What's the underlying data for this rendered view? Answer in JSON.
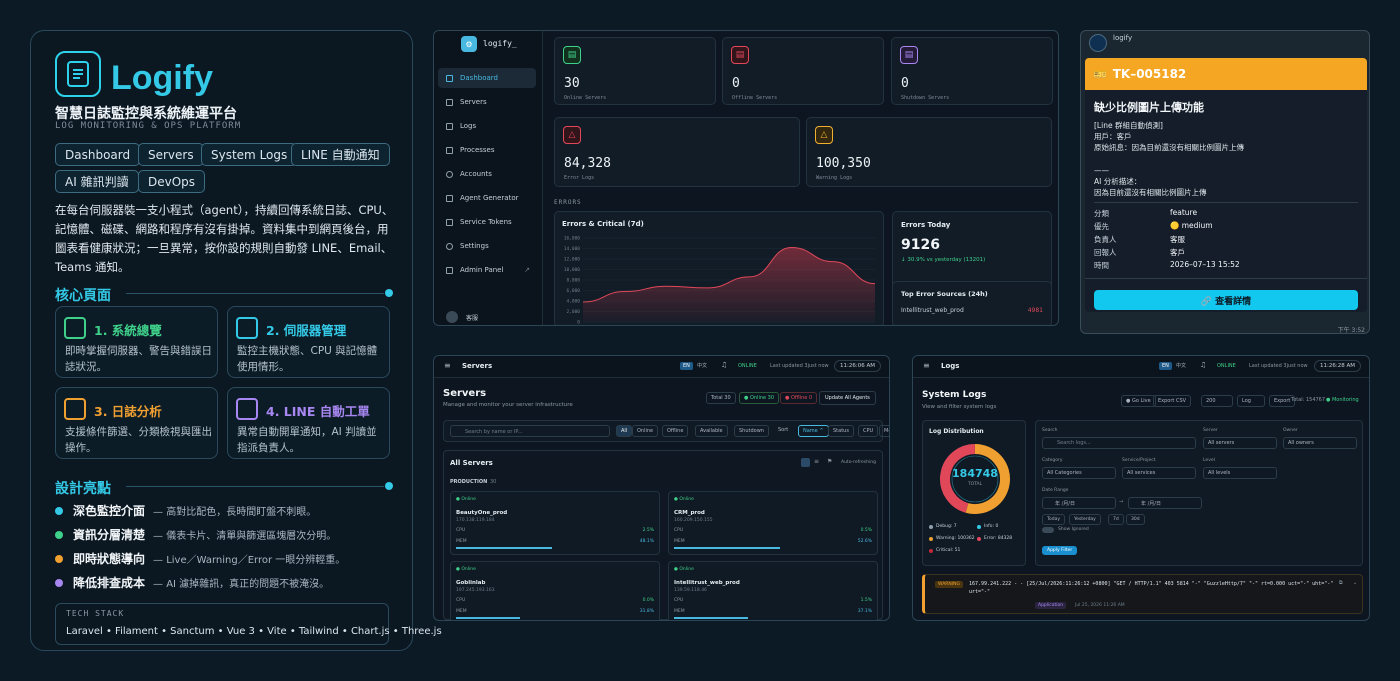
{
  "left": {
    "brand": "Logify",
    "subtitle": "智慧日誌監控與系統維運平台",
    "subtitle_en": "LOG MONITORING & OPS PLATFORM",
    "chips": [
      "Dashboard",
      "Servers",
      "System Logs",
      "LINE 自動通知",
      "AI 雜訊判讀",
      "DevOps"
    ],
    "description": "在每台伺服器裝一支小程式（agent），持續回傳系統日誌、CPU、記憶體、磁碟、網路和程序有沒有掛掉。資料集中到網頁後台，用圖表看健康狀況；一旦異常，按你設的規則自動發 LINE、Email、Teams 通知。",
    "core_title": "核心頁面",
    "cards": [
      {
        "title": "1. 系統總覽",
        "desc": "即時掌握伺服器、警告與錯誤日誌狀況。",
        "color": "#3fd08a"
      },
      {
        "title": "2. 伺服器管理",
        "desc": "監控主機狀態、CPU 與記憶體使用情形。",
        "color": "#34c9e6"
      },
      {
        "title": "3. 日誌分析",
        "desc": "支援條件篩選、分類檢視與匯出操作。",
        "color": "#f0a030"
      },
      {
        "title": "4. LINE 自動工單",
        "desc": "異常自動開單通知，AI 判讀並指派負責人。",
        "color": "#a887f2"
      }
    ],
    "design_title": "設計亮點",
    "highlights": [
      {
        "bold": "深色監控介面",
        "text": "— 高對比配色，長時間盯盤不刺眼。",
        "color": "#34c9e6"
      },
      {
        "bold": "資訊分層清楚",
        "text": "— 儀表卡片、清單與篩選區塊層次分明。",
        "color": "#3fd08a"
      },
      {
        "bold": "即時狀態導向",
        "text": "— Live／Warning／Error 一眼分辨輕重。",
        "color": "#f0a030"
      },
      {
        "bold": "降低排查成本",
        "text": "— AI 濾掉雜訊，真正的問題不被淹沒。",
        "color": "#a887f2"
      }
    ],
    "tech_title": "TECH STACK",
    "tech": "Laravel • Filament • Sanctum • Vue 3 • Vite • Tailwind • Chart.js • Three.js"
  },
  "dash": {
    "app": "logify_",
    "nav": [
      "Dashboard",
      "Servers",
      "Logs",
      "Processes",
      "Accounts",
      "Agent Generator",
      "Service Tokens",
      "Settings",
      "Admin Panel"
    ],
    "stats": [
      {
        "value": "30",
        "label": "Online Servers",
        "color": "#3fd08a",
        "icon": "server-icon"
      },
      {
        "value": "0",
        "label": "Offline Servers",
        "color": "#e0485a",
        "icon": "server-icon"
      },
      {
        "value": "0",
        "label": "Shutdown Servers",
        "color": "#a887f2",
        "icon": "server-icon"
      },
      {
        "value": "84,328",
        "label": "Error Logs",
        "color": "#e0485a",
        "icon": "alert-icon"
      },
      {
        "value": "100,350",
        "label": "Warning Logs",
        "color": "#f0b030",
        "icon": "warning-icon"
      }
    ],
    "errors_label": "ERRORS",
    "chart_title": "Errors & Critical (7d)",
    "yticks": [
      "16,000",
      "14,000",
      "12,000",
      "10,000",
      "8,000",
      "6,000",
      "4,000",
      "2,000",
      "0"
    ],
    "today_title": "Errors Today",
    "today_value": "9126",
    "today_delta": "↓ 30.9% vs yesterday (13201)",
    "sources_title": "Top Error Sources (24h)",
    "source1": "Intellitrust_web_prod",
    "source1_val": "4981",
    "user": "客服"
  },
  "chart_data": {
    "type": "area",
    "title": "Errors & Critical (7d)",
    "ylim": [
      0,
      16000
    ],
    "yticks": [
      16000,
      14000,
      12000,
      10000,
      8000,
      6000,
      4000,
      2000,
      0
    ],
    "values": [
      3800,
      5800,
      6800,
      6500,
      8600,
      14200,
      11500,
      7300
    ]
  },
  "line": {
    "sender": "logify",
    "ticket": "TK–005182",
    "title": "缺少比例圖片上傳功能",
    "source": "[Line 群組自動偵測]",
    "user_line": "用戶：客戶",
    "orig": "原始訊息：因為目前還沒有相關比例圖片上傳",
    "divider": "——",
    "ai_label": "AI 分析描述：",
    "ai_text": "因為目前還沒有相關比例圖片上傳",
    "fields": [
      {
        "k": "分類",
        "v": "feature"
      },
      {
        "k": "優先",
        "v": "🟡 medium"
      },
      {
        "k": "負責人",
        "v": "客服"
      },
      {
        "k": "回報人",
        "v": "客戶"
      },
      {
        "k": "時間",
        "v": "2026–07–13 15:52"
      }
    ],
    "button": "🔗 查看詳情",
    "time": "下午 3:52"
  },
  "servers": {
    "title": "Servers",
    "heading": "Servers",
    "subheading": "Manage and monitor your server infrastructure",
    "online_status": "ONLINE",
    "updated": "Last updated 3just now",
    "clock": "11:26:06 AM",
    "total": "Total 30",
    "online": "● Online 30",
    "offline": "● Offline 0",
    "update_btn": "Update All Agents",
    "search": "Search by name or IP...",
    "filters": [
      "All",
      "Online",
      "Offline",
      "Available",
      "Shutdown"
    ],
    "sorts": [
      "Sort",
      "Name ^",
      "Status",
      "CPU",
      "Memory",
      "Last Seen"
    ],
    "all_title": "All Servers",
    "auto": "Auto-refreshing",
    "prod": "PRODUCTION",
    "prod_count": "30",
    "cards": [
      {
        "status": "Online",
        "name": "BeautyOne_prod",
        "ip": "170.138.119.184",
        "cpu": "2.5%",
        "mem": "48.1%",
        "memf": 0.48
      },
      {
        "status": "Online",
        "name": "CRM_prod",
        "ip": "160.209.150.155",
        "cpu": "0.5%",
        "mem": "52.6%",
        "memf": 0.53
      },
      {
        "status": "Online",
        "name": "Goblinlab",
        "ip": "197.245.193.163",
        "cpu": "0.0%",
        "mem": "31.8%",
        "memf": 0.32
      },
      {
        "status": "Online",
        "name": "Intellitrust_web_prod",
        "ip": "139.59.118.46",
        "cpu": "1.5%",
        "mem": "37.1%",
        "memf": 0.37
      }
    ]
  },
  "logs": {
    "title": "Logs",
    "heading": "System Logs",
    "subheading": "View and filter system logs",
    "online_status": "ONLINE",
    "updated": "Last updated 3just now",
    "clock": "11:26:28 AM",
    "go_live": "● Go Live",
    "export_csv": "Export CSV",
    "count": "200",
    "fmt": "Log",
    "export": "Export",
    "total": "Total: 154767",
    "monitoring": "● Monitoring",
    "dist_title": "Log Distribution",
    "total_value": "184748",
    "total_label": "TOTAL",
    "legend": [
      {
        "label": "Debug: 7",
        "color": "#8fa0ad"
      },
      {
        "label": "Info: 0",
        "color": "#34c9e6"
      },
      {
        "label": "Warning: 100362",
        "color": "#f0a030"
      },
      {
        "label": "Error: 84328",
        "color": "#e0485a"
      },
      {
        "label": "Critical: 51",
        "color": "#c0283a"
      }
    ],
    "search_label": "Search",
    "search_ph": "Search logs...",
    "server_label": "Server",
    "server_val": "All servers",
    "owner_label": "Owner",
    "owner_val": "All owners",
    "cat_label": "Category",
    "cat_val": "All Categories",
    "svc_label": "Service/Project",
    "svc_val": "All services",
    "level_label": "Level",
    "level_val": "All levels",
    "date_label": "Date Range",
    "date_from": "年 /月/日",
    "date_to": "年 /月/日",
    "quick": [
      "Today",
      "Yesterday",
      "7d",
      "30d"
    ],
    "ignored": "Show Ignored",
    "apply": "Apply Filter",
    "entry_level": "WARNING",
    "entry_text": "167.99.241.222 - - [25/Jul/2026:11:26:12 +0800] \"GET / HTTP/1.1\" 403 5814 \"-\" \"GuzzleHttp/7\" \"-\" rt=0.000 uct=\"-\" uht=\"-\" urt=\"-\"",
    "entry_tag": "Application",
    "entry_time": "Jul 25, 2026 11:26 AM"
  }
}
